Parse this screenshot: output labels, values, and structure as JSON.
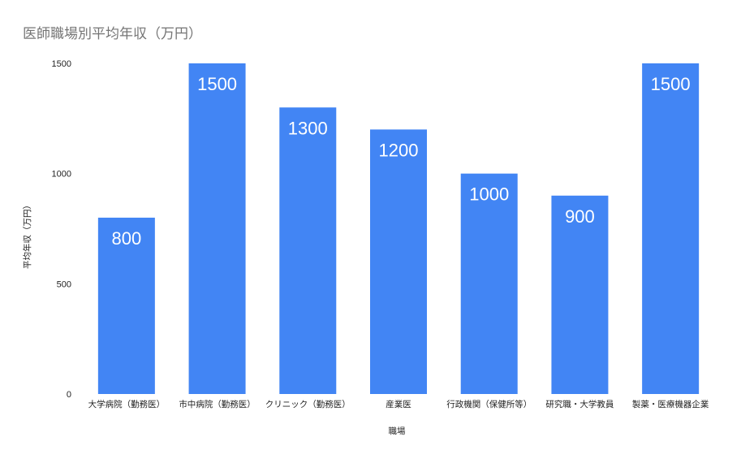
{
  "chart_data": {
    "type": "bar",
    "title": "医師職場別平均年収（万円）",
    "xlabel": "職場",
    "ylabel": "平均年収（万円）",
    "categories": [
      "大学病院（勤務医）",
      "市中病院（勤務医）",
      "クリニック（勤務医）",
      "産業医",
      "行政機関（保健所等）",
      "研究職・大学教員",
      "製薬・医療機器企業"
    ],
    "values": [
      800,
      1500,
      1300,
      1200,
      1000,
      900,
      1500
    ],
    "ylim": [
      0,
      1500
    ],
    "yticks": [
      0,
      500,
      1000,
      1500
    ],
    "grid": false,
    "legend": "none",
    "bar_color": "#4285F4",
    "data_labels": true
  }
}
